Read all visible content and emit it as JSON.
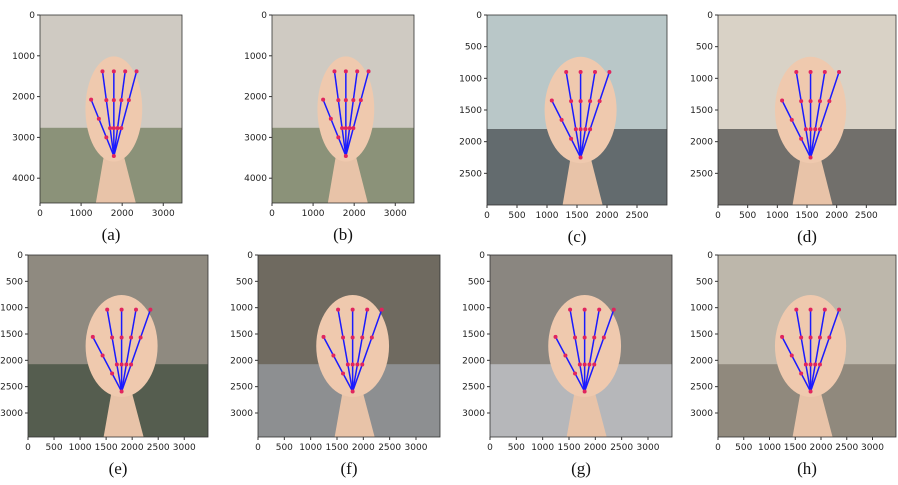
{
  "panels": [
    {
      "label": "(a)",
      "xlim": [
        0,
        3456
      ],
      "ylim": [
        0,
        4608
      ],
      "xticks": [
        0,
        1000,
        2000,
        3000
      ],
      "yticks": [
        0,
        1000,
        2000,
        3000,
        4000
      ]
    },
    {
      "label": "(b)",
      "xlim": [
        0,
        3456
      ],
      "ylim": [
        0,
        4608
      ],
      "xticks": [
        0,
        1000,
        2000,
        3000
      ],
      "yticks": [
        0,
        1000,
        2000,
        3000,
        4000
      ]
    },
    {
      "label": "(c)",
      "xlim": [
        0,
        3000
      ],
      "ylim": [
        0,
        3000
      ],
      "xticks": [
        0,
        500,
        1000,
        1500,
        2000,
        2500
      ],
      "yticks": [
        0,
        500,
        1000,
        1500,
        2000,
        2500
      ]
    },
    {
      "label": "(d)",
      "xlim": [
        0,
        3000
      ],
      "ylim": [
        0,
        3000
      ],
      "xticks": [
        0,
        500,
        1000,
        1500,
        2000,
        2500
      ],
      "yticks": [
        0,
        500,
        1000,
        1500,
        2000,
        2500
      ]
    },
    {
      "label": "(e)",
      "xlim": [
        0,
        3456
      ],
      "ylim": [
        0,
        3456
      ],
      "xticks": [
        0,
        500,
        1000,
        1500,
        2000,
        2500,
        3000
      ],
      "yticks": [
        0,
        500,
        1000,
        1500,
        2000,
        2500,
        3000
      ]
    },
    {
      "label": "(f)",
      "xlim": [
        0,
        3456
      ],
      "ylim": [
        0,
        3456
      ],
      "xticks": [
        0,
        500,
        1000,
        1500,
        2000,
        2500,
        3000
      ],
      "yticks": [
        0,
        500,
        1000,
        1500,
        2000,
        2500,
        3000
      ]
    },
    {
      "label": "(g)",
      "xlim": [
        0,
        3456
      ],
      "ylim": [
        0,
        3456
      ],
      "xticks": [
        0,
        500,
        1000,
        1500,
        2000,
        2500,
        3000
      ],
      "yticks": [
        0,
        500,
        1000,
        1500,
        2000,
        2500,
        3000
      ]
    },
    {
      "label": "(h)",
      "xlim": [
        0,
        3456
      ],
      "ylim": [
        0,
        3456
      ],
      "xticks": [
        0,
        500,
        1000,
        1500,
        2000,
        2500,
        3000
      ],
      "yticks": [
        0,
        500,
        1000,
        1500,
        2000,
        2500,
        3000
      ]
    }
  ]
}
